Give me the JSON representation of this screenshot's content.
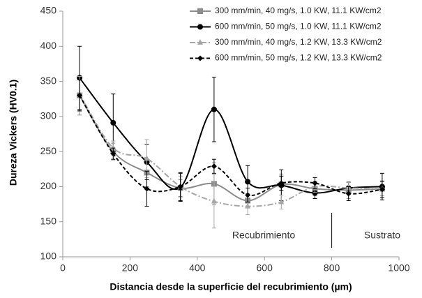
{
  "chart_data": {
    "type": "line",
    "xlabel": "Distancia desde la superficie del recubrimiento (µm)",
    "ylabel": "Dureza Vickers (HV0.1)",
    "x": [
      50,
      150,
      250,
      350,
      450,
      550,
      650,
      750,
      850,
      950
    ],
    "series": [
      {
        "name": "300 mm/min, 40 mg/s, 1.0 KW, 11.1 KW/cm2",
        "color": "#8c8c8c",
        "line_style": "solid",
        "marker": "square",
        "values": [
          330,
          250,
          220,
          198,
          204,
          180,
          203,
          197,
          195,
          197
        ],
        "errors": [
          28,
          12,
          20,
          12,
          30,
          10,
          15,
          10,
          12,
          10
        ]
      },
      {
        "name": "600 mm/min, 50 mg/s, 1.0 KW, 11.1 KW/cm2",
        "color": "#000000",
        "line_style": "solid",
        "marker": "circle",
        "values": [
          355,
          291,
          235,
          199,
          310,
          207,
          202,
          191,
          198,
          200
        ],
        "errors": [
          45,
          41,
          25,
          20,
          46,
          23,
          22,
          8,
          8,
          19
        ]
      },
      {
        "name": "300 mm/min, 40 mg/s, 1.2 KW, 13.3 KW/cm2",
        "color": "#a6a6a6",
        "line_style": "dashdot",
        "marker": "triangle",
        "values": [
          332,
          255,
          240,
          200,
          179,
          172,
          178,
          200,
          198,
          197
        ],
        "errors": [
          25,
          10,
          27,
          15,
          38,
          12,
          10,
          8,
          8,
          10
        ]
      },
      {
        "name": "600 mm/min, 50 mg/s, 1.2 KW, 13.3 KW/cm2",
        "color": "#000000",
        "line_style": "dashed",
        "marker": "diamond",
        "values": [
          330,
          247,
          197,
          200,
          229,
          188,
          205,
          205,
          190,
          196
        ],
        "errors": [
          22,
          8,
          25,
          20,
          10,
          10,
          10,
          8,
          10,
          12
        ]
      }
    ],
    "xlim": [
      0,
      1000
    ],
    "xticks": [
      0,
      200,
      400,
      600,
      800,
      1000
    ],
    "ylim": [
      100,
      450
    ],
    "yticks": [
      100,
      150,
      200,
      250,
      300,
      350,
      400,
      450
    ],
    "grid": false,
    "legend": "upper right",
    "annotations": [
      {
        "text": "Recubrimiento"
      },
      {
        "text": "Sustrato"
      }
    ],
    "divider_x": 800
  }
}
